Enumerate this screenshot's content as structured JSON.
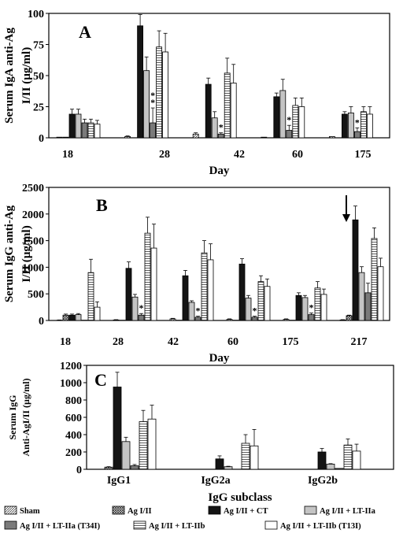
{
  "colors": {
    "Sham": "#bdbdbd",
    "Ag I/II": "#8f8f8f",
    "Ag I/II + CT": "#141414",
    "Ag I/II + LT-IIa": "#c4c4c4",
    "Ag I/II + LT-IIa (T34I)": "#7a7a7a",
    "Ag I/II + LT-IIb": "#ffffff",
    "Ag I/II + LT-IIb (T13I)": "#ffffff"
  },
  "legend": {
    "title": "IgG subclass",
    "entries": [
      "Sham",
      "Ag I/II",
      "Ag I/II + CT",
      "Ag I/II + LT-IIa",
      "Ag I/II + LT-IIa (T34I)",
      "Ag I/II + LT-IIb",
      "Ag I/II + LT-IIb (T13I)"
    ]
  },
  "chart_data": [
    {
      "type": "bar",
      "panel": "A",
      "ylabel": "Serum IgA anti-Ag I/II (µg/ml)",
      "xlabel": "Day",
      "categories": [
        "18",
        "28",
        "42",
        "60",
        "175"
      ],
      "ylim": [
        0,
        100
      ],
      "yticks": [
        0,
        25,
        50,
        75,
        100
      ],
      "series": [
        {
          "name": "Sham",
          "values": [
            0.5,
            1,
            3,
            0.5,
            1
          ],
          "errors": [
            0,
            0.5,
            1,
            0,
            0
          ]
        },
        {
          "name": "Ag I/II",
          "values": [
            0.5,
            0,
            0,
            0,
            0
          ],
          "errors": [
            0,
            0,
            0,
            0,
            0
          ]
        },
        {
          "name": "Ag I/II + CT",
          "values": [
            19,
            90,
            43,
            33,
            19
          ],
          "errors": [
            4,
            9,
            5,
            3,
            2
          ]
        },
        {
          "name": "Ag I/II + LT-IIa",
          "values": [
            19,
            54,
            16,
            38,
            20
          ],
          "errors": [
            4,
            11,
            5,
            9,
            5
          ]
        },
        {
          "name": "Ag I/II + LT-IIa (T34I)",
          "values": [
            12,
            12,
            3,
            6,
            5
          ],
          "errors": [
            3,
            12,
            1,
            4,
            3
          ]
        },
        {
          "name": "Ag I/II + LT-IIb",
          "values": [
            12,
            73,
            52,
            26,
            21
          ],
          "errors": [
            3,
            13,
            12,
            6,
            4
          ]
        },
        {
          "name": "Ag I/II + LT-IIb (T13I)",
          "values": [
            11,
            69,
            44,
            25,
            19
          ],
          "errors": [
            3,
            15,
            15,
            7,
            6
          ]
        }
      ],
      "annotations": [
        {
          "text": "*",
          "category": "28",
          "series": "Ag I/II + LT-IIa (T34I)"
        },
        {
          "text": "*",
          "category": "28",
          "series": "Ag I/II + LT-IIa (T34I)"
        },
        {
          "text": "*",
          "category": "42",
          "series": "Ag I/II + LT-IIa (T34I)"
        },
        {
          "text": "*",
          "category": "60",
          "series": "Ag I/II + LT-IIa (T34I)"
        },
        {
          "text": "*",
          "category": "175",
          "series": "Ag I/II + LT-IIa (T34I)"
        }
      ]
    },
    {
      "type": "bar",
      "panel": "B",
      "ylabel": "Serum IgG anti-Ag I/II (µg/ml)",
      "xlabel": "Day",
      "categories": [
        "18",
        "28",
        "42",
        "60",
        "175",
        "217"
      ],
      "ylim": [
        0,
        2500
      ],
      "yticks": [
        0,
        500,
        1000,
        1500,
        2000,
        2500
      ],
      "series": [
        {
          "name": "Sham",
          "values": [
            5,
            10,
            30,
            20,
            20,
            10
          ],
          "errors": [
            5,
            5,
            10,
            10,
            10,
            5
          ]
        },
        {
          "name": "Ag I/II",
          "values": [
            100,
            5,
            5,
            5,
            5,
            90
          ],
          "errors": [
            20,
            0,
            0,
            0,
            0,
            10
          ]
        },
        {
          "name": "Ag I/II + CT",
          "values": [
            100,
            980,
            840,
            1060,
            470,
            1890
          ],
          "errors": [
            20,
            120,
            100,
            100,
            50,
            260
          ]
        },
        {
          "name": "Ag I/II + LT-IIa",
          "values": [
            110,
            440,
            340,
            420,
            430,
            900
          ],
          "errors": [
            20,
            50,
            30,
            50,
            40,
            110
          ]
        },
        {
          "name": "Ag I/II + LT-IIa (T34I)",
          "values": [
            5,
            100,
            60,
            60,
            110,
            520
          ],
          "errors": [
            0,
            30,
            20,
            20,
            30,
            180
          ]
        },
        {
          "name": "Ag I/II + LT-IIb",
          "values": [
            900,
            1640,
            1270,
            730,
            610,
            1540
          ],
          "errors": [
            250,
            300,
            230,
            110,
            120,
            200
          ]
        },
        {
          "name": "Ag I/II + LT-IIb (T13I)",
          "values": [
            250,
            1360,
            1140,
            640,
            490,
            1010
          ],
          "errors": [
            100,
            450,
            300,
            140,
            100,
            160
          ]
        }
      ],
      "annotations": [
        {
          "text": "*",
          "category": "28",
          "series": "Ag I/II + LT-IIa (T34I)"
        },
        {
          "text": "*",
          "category": "42",
          "series": "Ag I/II + LT-IIa (T34I)"
        },
        {
          "text": "*",
          "category": "60",
          "series": "Ag I/II + LT-IIa (T34I)"
        },
        {
          "text": "*",
          "category": "175",
          "series": "Ag I/II + LT-IIa (T34I)"
        },
        {
          "text": "arrow",
          "category": "217"
        }
      ]
    },
    {
      "type": "bar",
      "panel": "C",
      "ylabel": "Serum IgG Anti-AgI/II (µg/ml)",
      "xlabel": "IgG subclass",
      "categories": [
        "IgG1",
        "IgG2a",
        "IgG2b"
      ],
      "ylim": [
        0,
        1200
      ],
      "yticks": [
        0,
        200,
        400,
        600,
        800,
        1000,
        1200
      ],
      "series": [
        {
          "name": "Sham",
          "values": [
            0,
            0,
            0
          ],
          "errors": [
            0,
            0,
            0
          ]
        },
        {
          "name": "Ag I/II",
          "values": [
            25,
            0,
            0
          ],
          "errors": [
            5,
            0,
            0
          ]
        },
        {
          "name": "Ag I/II + CT",
          "values": [
            950,
            120,
            200
          ],
          "errors": [
            170,
            35,
            40
          ]
        },
        {
          "name": "Ag I/II + LT-IIa",
          "values": [
            320,
            30,
            60
          ],
          "errors": [
            50,
            5,
            5
          ]
        },
        {
          "name": "Ag I/II + LT-IIa (T34I)",
          "values": [
            40,
            0,
            10
          ],
          "errors": [
            15,
            0,
            0
          ]
        },
        {
          "name": "Ag I/II + LT-IIb",
          "values": [
            550,
            300,
            280
          ],
          "errors": [
            130,
            100,
            70
          ]
        },
        {
          "name": "Ag I/II + LT-IIb (T13I)",
          "values": [
            580,
            270,
            210
          ],
          "errors": [
            160,
            190,
            80
          ]
        }
      ]
    }
  ]
}
